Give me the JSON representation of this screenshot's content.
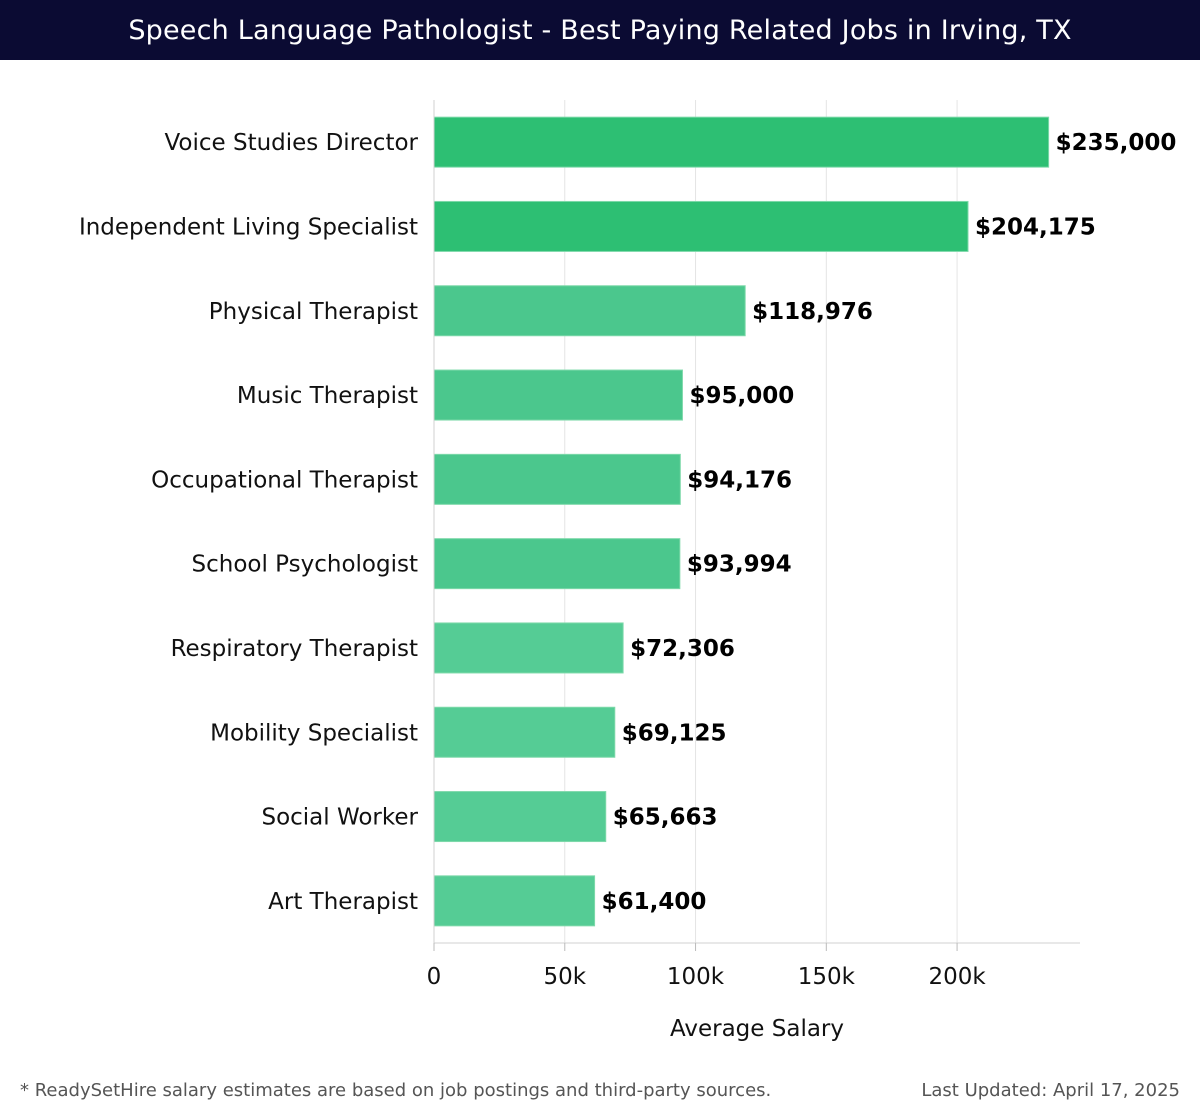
{
  "title": "Speech Language Pathologist - Best Paying Related Jobs in Irving, TX",
  "footnote": "* ReadySetHire salary estimates are based on job postings and third-party sources.",
  "last_updated": "Last Updated: April 17, 2025",
  "colors": {
    "title_bg": "#0b0b33",
    "bar_top": "#2dbf73",
    "bar_mid": "#4bc78d",
    "bar_low": "#55cc95",
    "grid": "#e4e4e4"
  },
  "chart_data": {
    "type": "bar",
    "orientation": "horizontal",
    "categories": [
      "Voice Studies Director",
      "Independent Living Specialist",
      "Physical Therapist",
      "Music Therapist",
      "Occupational Therapist",
      "School Psychologist",
      "Respiratory Therapist",
      "Mobility Specialist",
      "Social Worker",
      "Art Therapist"
    ],
    "values": [
      235000,
      204175,
      118976,
      95000,
      94176,
      93994,
      72306,
      69125,
      65663,
      61400
    ],
    "value_labels": [
      "$235,000",
      "$204,175",
      "$118,976",
      "$95,000",
      "$94,176",
      "$93,994",
      "$72,306",
      "$69,125",
      "$65,663",
      "$61,400"
    ],
    "xlabel": "Average Salary",
    "ylabel": "",
    "xlim": [
      0,
      247000
    ],
    "xticks": [
      0,
      50000,
      100000,
      150000,
      200000
    ],
    "xtick_labels": [
      "0",
      "50k",
      "100k",
      "150k",
      "200k"
    ],
    "grid": true,
    "legend": "none"
  }
}
